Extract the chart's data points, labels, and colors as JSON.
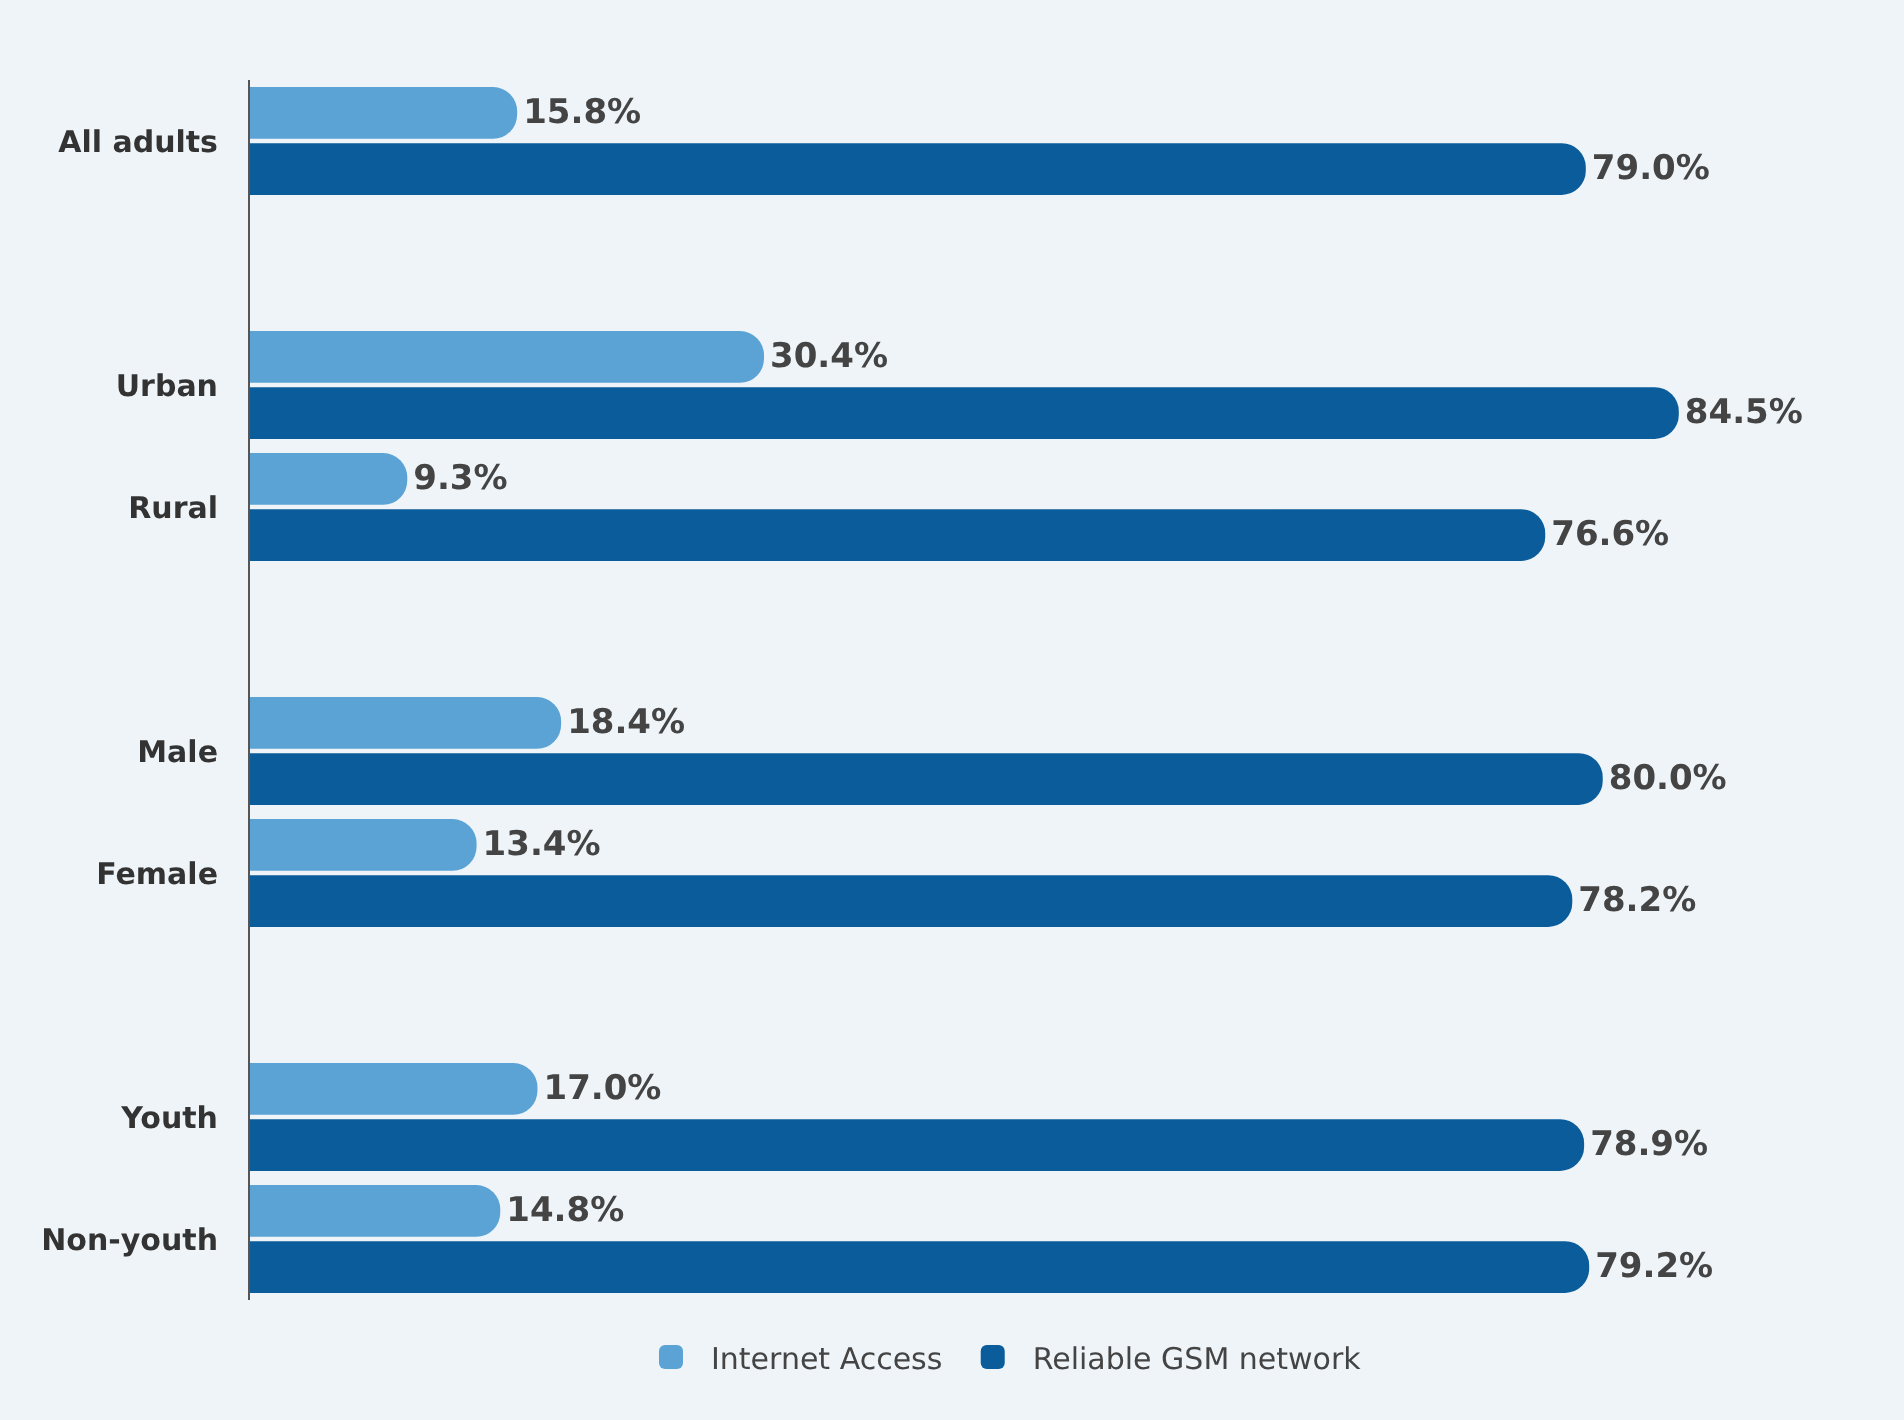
{
  "chart_data": {
    "type": "bar",
    "orientation": "horizontal",
    "categories": [
      "All adults",
      null,
      "Urban",
      "Rural",
      null,
      "Male",
      "Female",
      null,
      "Youth",
      "Non-youth"
    ],
    "series": [
      {
        "name": "Internet Access",
        "color": "#5ba3d5",
        "values": [
          15.8,
          null,
          30.4,
          9.3,
          null,
          18.4,
          13.4,
          null,
          17.0,
          14.8
        ],
        "value_labels": [
          "15.8%",
          null,
          "30.4%",
          "9.3%",
          null,
          "18.4%",
          "13.4%",
          null,
          "17.0%",
          "14.8%"
        ]
      },
      {
        "name": "Reliable GSM network",
        "color": "#0a5c9a",
        "values": [
          79.0,
          null,
          84.5,
          76.6,
          null,
          80.0,
          78.2,
          null,
          78.9,
          79.2
        ],
        "value_labels": [
          "79.0%",
          null,
          "84.5%",
          "76.6%",
          null,
          "80.0%",
          "78.2%",
          null,
          "78.9%",
          "79.2%"
        ]
      }
    ],
    "tick_labels": "y",
    "grid": false,
    "legend": "bottom"
  }
}
